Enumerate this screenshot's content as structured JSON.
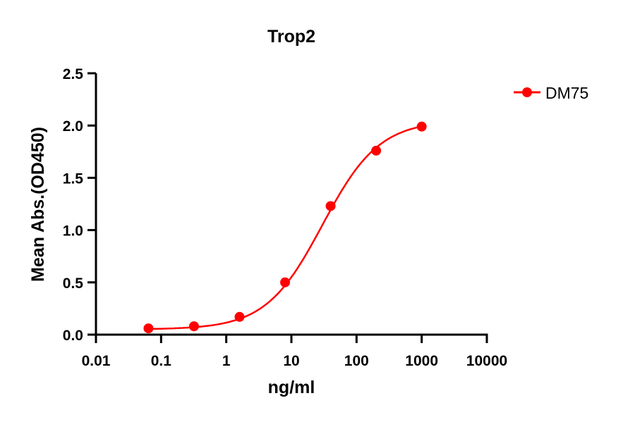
{
  "chart_data": {
    "type": "scatter",
    "title": "Trop2",
    "xlabel": "ng/ml",
    "ylabel": "Mean Abs.(OD450)",
    "xscale": "log",
    "xlim": [
      0.01,
      10000
    ],
    "ylim": [
      0,
      2.5
    ],
    "x_ticks": [
      0.01,
      0.1,
      1,
      10,
      100,
      1000,
      10000
    ],
    "x_tick_labels": [
      "0.01",
      "0.1",
      "1",
      "10",
      "100",
      "1000",
      "10000"
    ],
    "y_ticks": [
      0,
      0.5,
      1,
      1.5,
      2,
      2.5
    ],
    "y_tick_labels": [
      "0.0",
      "0.5",
      "1.0",
      "1.5",
      "2.0",
      "2.5"
    ],
    "grid": false,
    "legend_position": "top-right",
    "series": [
      {
        "name": "DM75",
        "color": "#ff0000",
        "x": [
          0.064,
          0.32,
          1.6,
          8,
          40,
          200,
          1000
        ],
        "y": [
          0.06,
          0.08,
          0.17,
          0.5,
          1.23,
          1.76,
          1.99
        ],
        "fit": {
          "model": "4PL",
          "bottom": 0.05,
          "top": 2.05,
          "ec50": 30,
          "hill": 1.0
        }
      }
    ]
  }
}
